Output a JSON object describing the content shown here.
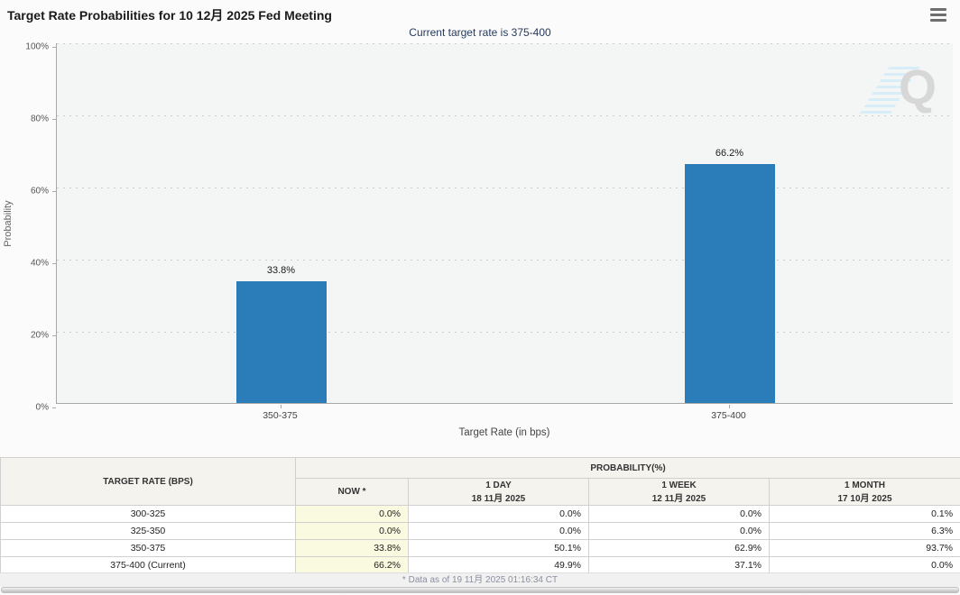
{
  "header": {
    "title": "Target Rate Probabilities for 10 12月 2025 Fed Meeting",
    "subtitle": "Current target rate is 375-400"
  },
  "chart_data": {
    "type": "bar",
    "categories": [
      "350-375",
      "375-400"
    ],
    "values": [
      33.8,
      66.2
    ],
    "value_labels": [
      "33.8%",
      "66.2%"
    ],
    "xlabel": "Target Rate (in bps)",
    "ylabel": "Probability",
    "ylim": [
      0,
      100
    ],
    "yticks": [
      0,
      20,
      40,
      60,
      80,
      100
    ],
    "ytick_suffix": "%",
    "grid": "horizontal-dotted",
    "legend": "none",
    "bar_color": "#2a7db8",
    "watermark": "Q"
  },
  "table": {
    "group_header": {
      "left": "TARGET RATE (BPS)",
      "right": "PROBABILITY(%)"
    },
    "columns": [
      {
        "line1": "NOW *",
        "line2": ""
      },
      {
        "line1": "1 DAY",
        "line2": "18 11月 2025"
      },
      {
        "line1": "1 WEEK",
        "line2": "12 11月 2025"
      },
      {
        "line1": "1 MONTH",
        "line2": "17 10月 2025"
      }
    ],
    "rows": [
      {
        "label": "300-325",
        "values": [
          "0.0%",
          "0.0%",
          "0.0%",
          "0.1%"
        ]
      },
      {
        "label": "325-350",
        "values": [
          "0.0%",
          "0.0%",
          "0.0%",
          "6.3%"
        ]
      },
      {
        "label": "350-375",
        "values": [
          "33.8%",
          "50.1%",
          "62.9%",
          "93.7%"
        ]
      },
      {
        "label": "375-400 (Current)",
        "values": [
          "66.2%",
          "49.9%",
          "37.1%",
          "0.0%"
        ]
      }
    ]
  },
  "footer": {
    "note": "* Data as of 19 11月 2025 01:16:34 CT"
  },
  "colors": {
    "bar": "#2a7db8",
    "now_column_bg": "#fafae1",
    "subtitle": "#253a5e",
    "table_header_bg": "#f4f3ee"
  }
}
